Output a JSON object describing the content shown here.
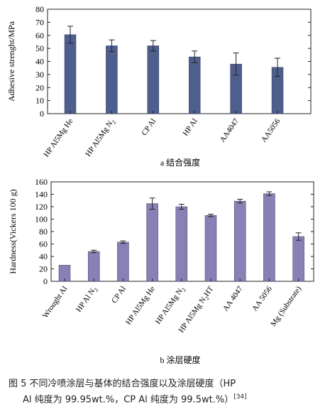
{
  "chart_data": [
    {
      "type": "bar",
      "ylabel": "Adhesive strenght/MPa",
      "ylim": [
        0,
        80
      ],
      "yticks": [
        0,
        10,
        20,
        30,
        40,
        50,
        60,
        70,
        80
      ],
      "categories": [
        "HP Al5Mg He",
        "HP Al5Mg N2",
        "CP Al",
        "HP Al",
        "AA4047",
        "AA5056"
      ],
      "values": [
        60.5,
        52,
        52,
        43.5,
        38,
        35.5
      ],
      "errors": [
        6.5,
        4.5,
        4,
        4.5,
        8.5,
        7
      ],
      "bar_color": "#4e5f8e",
      "caption": "a  结合强度"
    },
    {
      "type": "bar",
      "ylabel": "Hardness(Vickers 100 g)",
      "ylim": [
        0,
        160
      ],
      "yticks": [
        0,
        20,
        40,
        60,
        80,
        100,
        120,
        140,
        160
      ],
      "categories": [
        "Wrought Al",
        "HP Al N2",
        "CP Al",
        "HP Al5Mg He",
        "HP Al5Mg N2",
        "HP Al5Mg N2HT",
        "AA 4047",
        "AA 5056",
        "Mg (Substrate)"
      ],
      "values": [
        26,
        48,
        63,
        125,
        120,
        106,
        129,
        141,
        72
      ],
      "errors": [
        0,
        2,
        2,
        9,
        4,
        2,
        3,
        3,
        6
      ],
      "bar_color": "#8a80b6",
      "caption": "b  涂层硬度"
    }
  ],
  "figure_caption": {
    "line1": "图 5   不同冷喷涂层与基体的结合强度以及涂层硬度（HP",
    "line2": "Al 纯度为 99.95wt.%，CP Al 纯度为 99.5wt.%）",
    "ref": "[34]"
  }
}
